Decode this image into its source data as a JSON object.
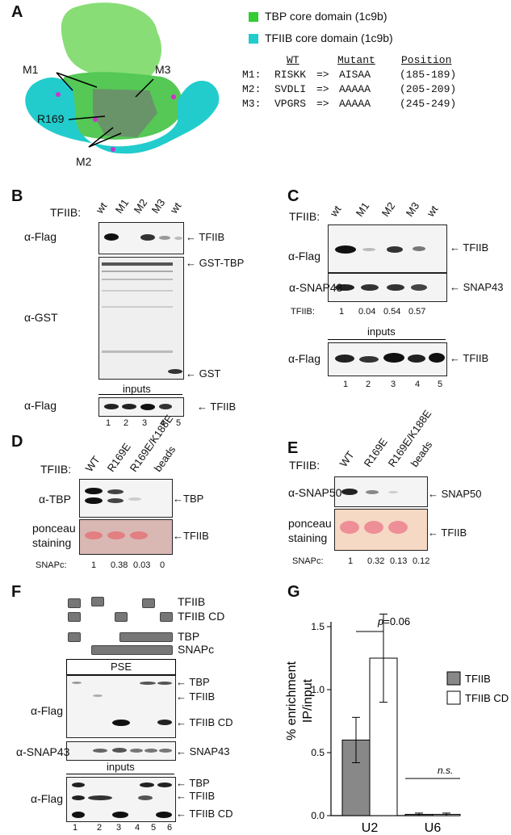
{
  "panels": {
    "A": "A",
    "B": "B",
    "C": "C",
    "D": "D",
    "E": "E",
    "F": "F",
    "G": "G"
  },
  "panelA": {
    "legend": [
      {
        "label": "TBP core domain (1c9b)",
        "color": "#33cc33"
      },
      {
        "label": "TFIIB core domain (1c9b)",
        "color": "#22cccc"
      }
    ],
    "table_headers": {
      "wt": "WT",
      "mutant": "Mutant",
      "position": "Position"
    },
    "mutants": [
      {
        "name": "M1:",
        "wt": "RISKK",
        "arrow": "=>",
        "mut": "AISAA",
        "pos": "(185-189)"
      },
      {
        "name": "M2:",
        "wt": "SVDLI",
        "arrow": "=>",
        "mut": "AAAAA",
        "pos": "(205-209)"
      },
      {
        "name": "M3:",
        "wt": "VPGRS",
        "arrow": "=>",
        "mut": "AAAAA",
        "pos": "(245-249)"
      }
    ],
    "structure_labels": {
      "m1": "M1",
      "m2": "M2",
      "m3": "M3",
      "r169": "R169"
    }
  },
  "panelB": {
    "tfiib_label": "TFIIB:",
    "lanes_top": [
      "wt",
      "M1",
      "M2",
      "M3",
      "wt"
    ],
    "row_labels": {
      "flag": "α-Flag",
      "gst": "α-GST",
      "flag_input": "α-Flag"
    },
    "band_labels": {
      "tfiib": "TFIIB",
      "gst_tbp": "GST-TBP",
      "gst": "GST",
      "tfiib_input": "TFIIB"
    },
    "inputs": "inputs",
    "lane_numbers": [
      "1",
      "2",
      "3",
      "4",
      "5"
    ]
  },
  "panelC": {
    "tfiib_label": "TFIIB:",
    "lanes_top": [
      "wt",
      "M1",
      "M2",
      "M3",
      "wt"
    ],
    "row_labels": {
      "flag": "α-Flag",
      "snap43": "α-SNAP43",
      "flag_input": "α-Flag"
    },
    "band_labels": {
      "tfiib": "TFIIB",
      "snap43": "SNAP43",
      "tfiib_input": "TFIIB"
    },
    "quant_label": "TFIIB:",
    "quant": [
      "1",
      "0.04",
      "0.54",
      "0.57"
    ],
    "inputs": "inputs",
    "lane_numbers": [
      "1",
      "2",
      "3",
      "4",
      "5"
    ]
  },
  "panelD": {
    "tfiib_label": "TFIIB:",
    "lanes_top": [
      "WT",
      "R169E",
      "R169E/K188E",
      "beads"
    ],
    "row_labels": {
      "tbp": "α-TBP",
      "ponceau1": "ponceau",
      "ponceau2": "staining"
    },
    "band_labels": {
      "tbp": "TBP",
      "tfiib": "TFIIB"
    },
    "quant_label": "SNAPc:",
    "quant": [
      "1",
      "0.38",
      "0.03",
      "0"
    ]
  },
  "panelE": {
    "tfiib_label": "TFIIB:",
    "lanes_top": [
      "WT",
      "R169E",
      "R169E/K188E",
      "beads"
    ],
    "row_labels": {
      "snap50": "α-SNAP50",
      "ponceau1": "ponceau",
      "ponceau2": "staining"
    },
    "band_labels": {
      "snap50": "SNAP50",
      "tfiib": "TFIIB"
    },
    "quant_label": "SNAPc:",
    "quant": [
      "1",
      "0.32",
      "0.13",
      "0.12"
    ]
  },
  "panelF": {
    "schematic_labels": {
      "tfiib": "TFIIB",
      "tfiib_cd": "TFIIB CD",
      "tbp": "TBP",
      "snapc": "SNAPc"
    },
    "pse": "PSE",
    "row_labels": {
      "flag": "α-Flag",
      "snap43": "α-SNAP43",
      "flag_input": "α-Flag"
    },
    "band_labels": {
      "tbp": "TBP",
      "tfiib": "TFIIB",
      "tfiib_cd": "TFIIB CD",
      "snap43": "SNAP43",
      "tbp_in": "TBP",
      "tfiib_in": "TFIIB",
      "tfiib_cd_in": "TFIIB CD"
    },
    "inputs": "inputs",
    "lane_numbers": [
      "1",
      "2",
      "3",
      "4",
      "5",
      "6"
    ]
  },
  "chart_data": {
    "type": "bar",
    "categories": [
      "U2",
      "U6"
    ],
    "series": [
      {
        "name": "TFIIB",
        "values": [
          0.6,
          0.01
        ],
        "errors": [
          0.18,
          0.01
        ],
        "color": "#888888"
      },
      {
        "name": "TFIIB CD",
        "values": [
          1.25,
          0.01
        ],
        "errors": [
          0.35,
          0.01
        ],
        "color": "#ffffff"
      }
    ],
    "ylabel_line1": "% enrichment",
    "ylabel_line2": "IP/input",
    "ylim": [
      0,
      1.5
    ],
    "yticks": [
      "0.0",
      "0.5",
      "1.0",
      "1.5"
    ],
    "annotations": {
      "p_prefix": "p",
      "p_value": "=0.06",
      "ns": "n.s."
    },
    "legend_position": "right"
  }
}
